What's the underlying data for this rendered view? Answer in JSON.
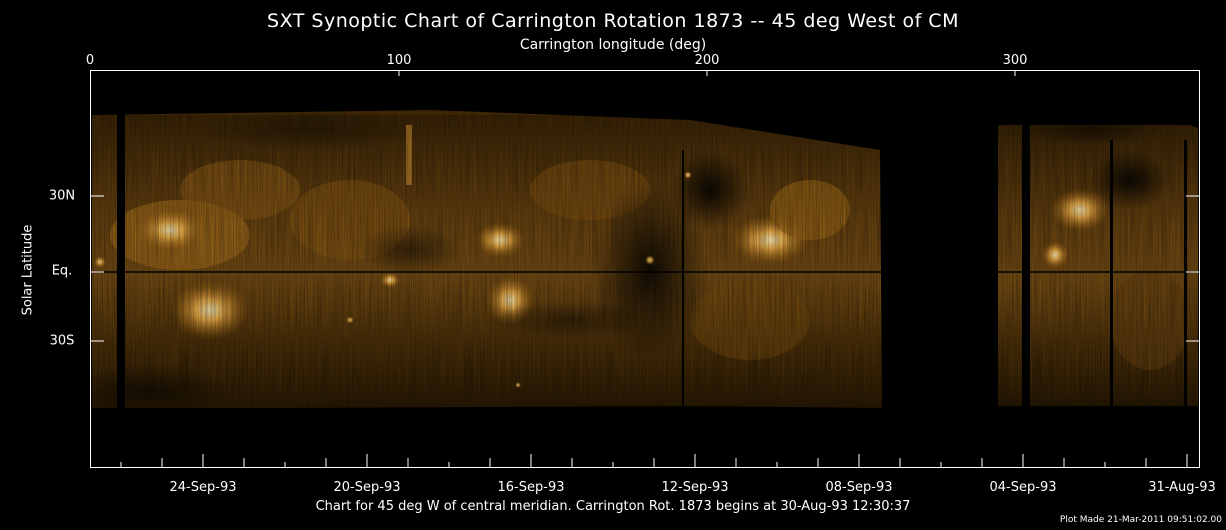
{
  "title": "SXT Synoptic Chart of Carrington Rotation 1873 -- 45 deg West of CM",
  "top_axis": {
    "label": "Carrington longitude (deg)",
    "ticks": [
      "0",
      "100",
      "200",
      "300"
    ]
  },
  "left_axis": {
    "label": "Solar Latitude",
    "ticks": [
      "30N",
      "Eq.",
      "30S"
    ]
  },
  "bottom_axis": {
    "ticks": [
      "24-Sep-93",
      "20-Sep-93",
      "16-Sep-93",
      "12-Sep-93",
      "08-Sep-93",
      "04-Sep-93",
      "31-Aug-93"
    ]
  },
  "footer": "Chart for 45 deg W of central meridian.  Carrington Rot. 1873 begins at 30-Aug-93 12:30:37",
  "plot_made": "Plot Made 21-Mar-2011 09:51:02.00",
  "colors": {
    "background": "#000000",
    "corona_base": "#5a3a08",
    "corona_bright": "#f4c060",
    "active_region": "#ffe6a0"
  }
}
